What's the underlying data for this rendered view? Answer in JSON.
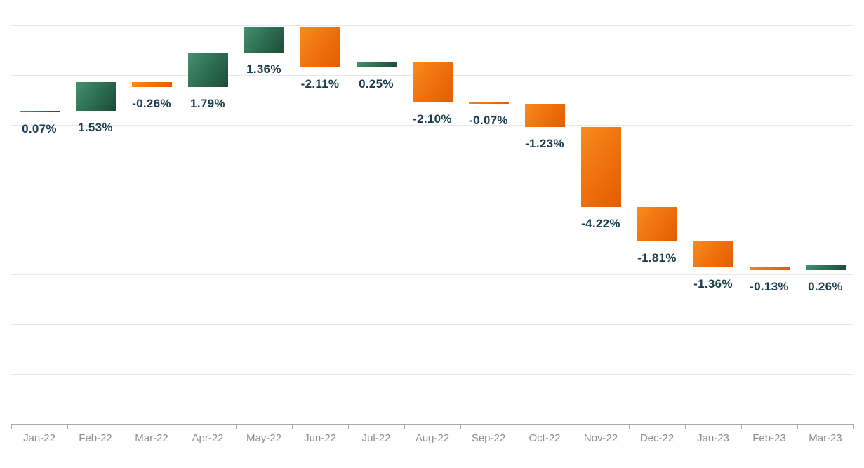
{
  "chart_data": {
    "type": "waterfall-bar",
    "title": "",
    "xlabel": "",
    "ylabel": "",
    "legend": false,
    "grid": "horizontal",
    "categories": [
      "Jan-22",
      "Feb-22",
      "Mar-22",
      "Apr-22",
      "May-22",
      "Jun-22",
      "Jul-22",
      "Aug-22",
      "Sep-22",
      "Oct-22",
      "Nov-22",
      "Dec-22",
      "Jan-23",
      "Feb-23",
      "Mar-23"
    ],
    "values": [
      0.07,
      1.53,
      -0.26,
      1.79,
      1.36,
      -2.11,
      0.25,
      -2.1,
      -0.07,
      -1.23,
      -4.22,
      -1.81,
      -1.36,
      -0.13,
      0.26
    ],
    "value_labels": [
      "0.07%",
      "1.53%",
      "-0.26%",
      "1.79%",
      "1.36%",
      "-2.11%",
      "0.25%",
      "-2.10%",
      "-0.07%",
      "-1.23%",
      "-4.22%",
      "-1.81%",
      "-1.36%",
      "-0.13%",
      "0.26%"
    ],
    "colors": {
      "increase": "#2d6e51",
      "decrease": "#f0740e",
      "data_label": "#173c4b",
      "axis_text": "#8e8e8e",
      "gridline": "#e8e8e8",
      "axis_line": "#a9a9a9"
    }
  }
}
